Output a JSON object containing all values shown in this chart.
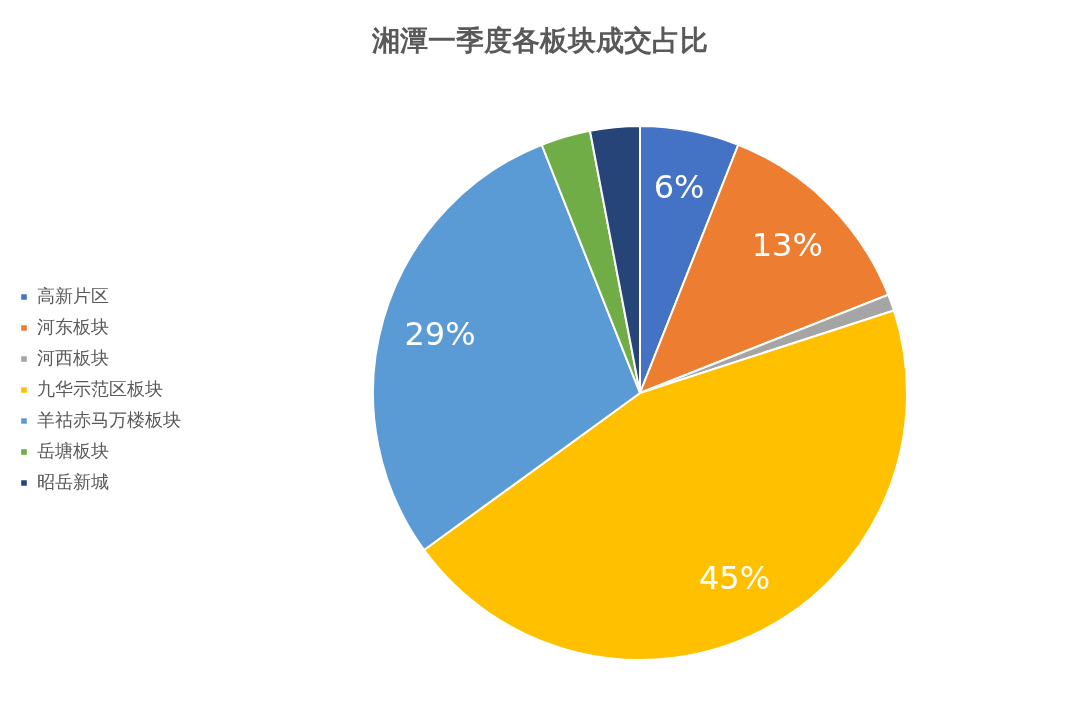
{
  "chart_data": {
    "type": "pie",
    "title": "湘潭一季度各板块成交占比",
    "categories": [
      "高新片区",
      "河东板块",
      "河西板块",
      "九华示范区板块",
      "羊祜赤马万楼板块",
      "岳塘板块",
      "昭岳新城"
    ],
    "values": [
      6,
      13,
      1,
      45,
      29,
      3,
      3
    ],
    "value_labels": [
      "6%",
      "13%",
      null,
      "45%",
      "29%",
      null,
      null
    ],
    "colors": [
      "#4472c4",
      "#ed7d31",
      "#a5a5a5",
      "#ffc000",
      "#5b9bd5",
      "#70ad47",
      "#264478"
    ],
    "legend": "left"
  }
}
